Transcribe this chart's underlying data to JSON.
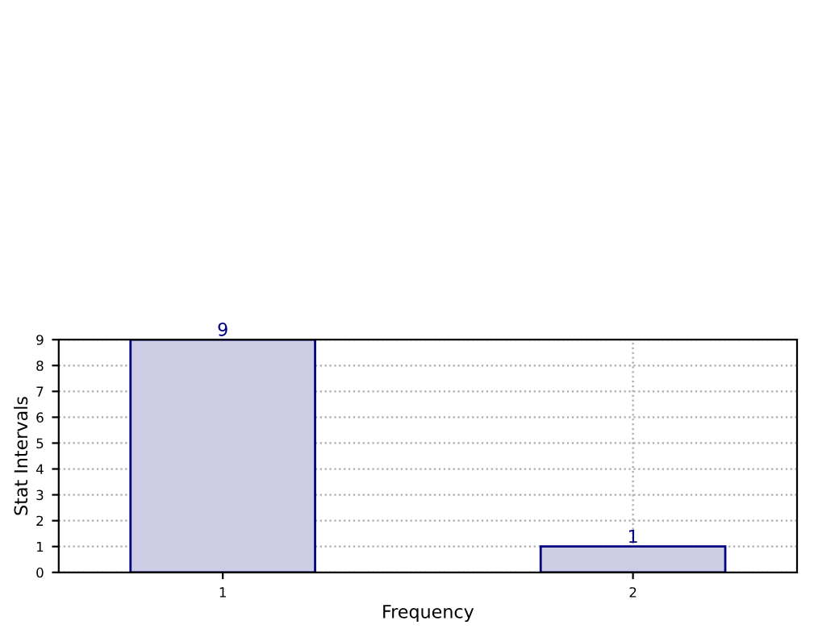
{
  "chart_data": {
    "type": "bar",
    "xlabel": "Frequency",
    "ylabel": "Stat Intervals",
    "categories": [
      "1",
      "2"
    ],
    "values": [
      9,
      1
    ],
    "color": "#ccccE5",
    "ylim": [
      0,
      9
    ],
    "yticks": [
      0,
      1,
      2,
      3,
      4,
      5,
      6,
      7,
      8,
      9
    ],
    "grid": true,
    "data_labels": true
  }
}
